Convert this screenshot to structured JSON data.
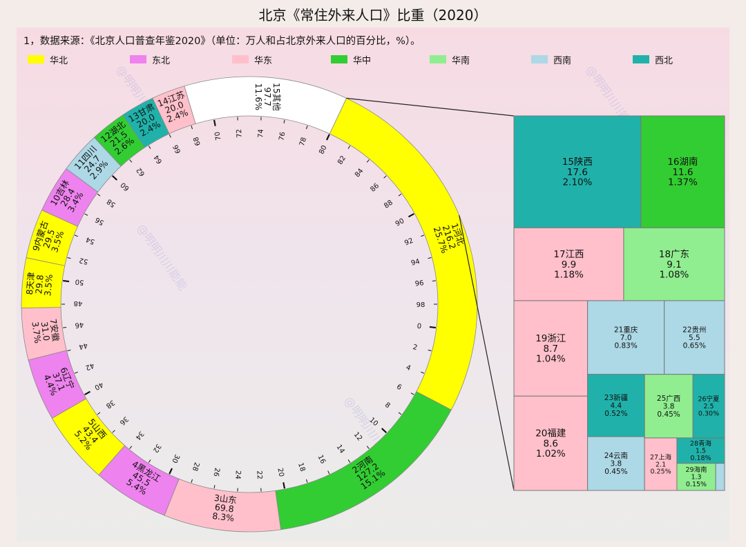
{
  "title": "北京《常住外来人口》比重（2020）",
  "note": "1，数据来源：《北京人口普查年鉴2020》（单位：万人和占北京外来人口的百分比，%）。",
  "watermark": "@明明川川能能",
  "regions": [
    {
      "name": "华北",
      "color": "#ffff00"
    },
    {
      "name": "东北",
      "color": "#ee82ee"
    },
    {
      "name": "华东",
      "color": "#ffc0cb"
    },
    {
      "name": "华中",
      "color": "#32cd32"
    },
    {
      "name": "华南",
      "color": "#90ee90"
    },
    {
      "name": "西南",
      "color": "#add8e6"
    },
    {
      "name": "西北",
      "color": "#20b2aa"
    }
  ],
  "chart_data": [
    {
      "type": "donut",
      "unit": "万人 / %",
      "tick_labels": [
        "0",
        "2",
        "4",
        "6",
        "8",
        "10",
        "12",
        "14",
        "16",
        "18",
        "20",
        "22",
        "24",
        "26",
        "28",
        "30",
        "32",
        "34",
        "36",
        "38",
        "40",
        "42",
        "44",
        "46",
        "48",
        "50",
        "52",
        "54",
        "56",
        "58",
        "60",
        "62",
        "64",
        "66",
        "68",
        "70",
        "72",
        "74",
        "76",
        "78",
        "80",
        "82",
        "84",
        "86",
        "88",
        "90",
        "92",
        "94",
        "96",
        "98"
      ],
      "segments": [
        {
          "label": "1河北",
          "value": 216.2,
          "percent": "25.7%",
          "region": "华北"
        },
        {
          "label": "2河南",
          "value": 127.2,
          "percent": "15.1%",
          "region": "华中"
        },
        {
          "label": "3山东",
          "value": 69.8,
          "percent": "8.3%",
          "region": "华东"
        },
        {
          "label": "4黑龙江",
          "value": 45.5,
          "percent": "5.4%",
          "region": "东北"
        },
        {
          "label": "5山西",
          "value": 43.4,
          "percent": "5.2%",
          "region": "华北"
        },
        {
          "label": "6辽宁",
          "value": 37.1,
          "percent": "4.4%",
          "region": "东北"
        },
        {
          "label": "7安徽",
          "value": 31.0,
          "percent": "3.7%",
          "region": "华东"
        },
        {
          "label": "8天津",
          "value": 29.8,
          "percent": "3.5%",
          "region": "华北"
        },
        {
          "label": "9内蒙古",
          "value": 29.5,
          "percent": "3.5%",
          "region": "华北"
        },
        {
          "label": "10吉林",
          "value": 28.4,
          "percent": "3.4%",
          "region": "东北"
        },
        {
          "label": "11四川",
          "value": 24.7,
          "percent": "2.9%",
          "region": "西南"
        },
        {
          "label": "12湖北",
          "value": 21.5,
          "percent": "2.6%",
          "region": "华中"
        },
        {
          "label": "13甘肃",
          "value": 20.0,
          "percent": "2.4%",
          "region": "西北"
        },
        {
          "label": "14江苏",
          "value": 20.0,
          "percent": "2.4%",
          "region": "华东"
        },
        {
          "label": "15其他",
          "value": 97.7,
          "percent": "11.6%",
          "region": ""
        }
      ]
    },
    {
      "type": "treemap",
      "items": [
        {
          "label": "15陕西",
          "value": 17.6,
          "percent": "2.10%",
          "region": "西北"
        },
        {
          "label": "16湖南",
          "value": 11.6,
          "percent": "1.37%",
          "region": "华中"
        },
        {
          "label": "17江西",
          "value": 9.9,
          "percent": "1.18%",
          "region": "华东"
        },
        {
          "label": "18广东",
          "value": 9.1,
          "percent": "1.08%",
          "region": "华南"
        },
        {
          "label": "19浙江",
          "value": 8.7,
          "percent": "1.04%",
          "region": "华东"
        },
        {
          "label": "20福建",
          "value": 8.6,
          "percent": "1.02%",
          "region": "华东"
        },
        {
          "label": "21重庆",
          "value": 7.0,
          "percent": "0.83%",
          "region": "西南"
        },
        {
          "label": "22贵州",
          "value": 5.5,
          "percent": "0.65%",
          "region": "西南"
        },
        {
          "label": "23新疆",
          "value": 4.4,
          "percent": "0.52%",
          "region": "西北"
        },
        {
          "label": "24云南",
          "value": 3.8,
          "percent": "0.45%",
          "region": "西南"
        },
        {
          "label": "25广西",
          "value": 3.8,
          "percent": "0.45%",
          "region": "华南"
        },
        {
          "label": "26宁夏",
          "value": 2.5,
          "percent": "0.30%",
          "region": "西北"
        },
        {
          "label": "27上海",
          "value": 2.1,
          "percent": "0.25%",
          "region": "华东"
        },
        {
          "label": "28青海",
          "value": 1.5,
          "percent": "0.18%",
          "region": "西北"
        },
        {
          "label": "29海南",
          "value": 1.3,
          "percent": "0.15%",
          "region": "华南"
        },
        {
          "label": "",
          "value": 0.3,
          "percent": "",
          "region": "西南"
        }
      ]
    }
  ]
}
